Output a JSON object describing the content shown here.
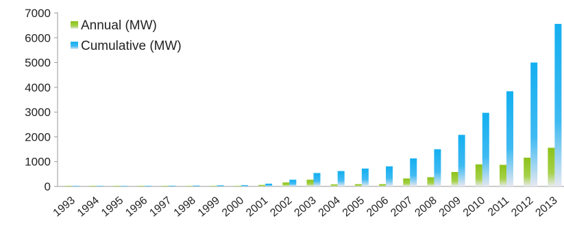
{
  "chart_data": {
    "type": "bar",
    "categories": [
      "1993",
      "1994",
      "1995",
      "1996",
      "1997",
      "1998",
      "1999",
      "2000",
      "2001",
      "2002",
      "2003",
      "2004",
      "2005",
      "2006",
      "2007",
      "2008",
      "2009",
      "2010",
      "2011",
      "2012",
      "2013"
    ],
    "series": [
      {
        "name": "Annual (MW)",
        "values": [
          5,
          5,
          5,
          10,
          5,
          10,
          10,
          10,
          60,
          160,
          270,
          80,
          90,
          90,
          320,
          370,
          580,
          890,
          870,
          1160,
          1560
        ],
        "color": "#8cc21a"
      },
      {
        "name": "Cumulative (MW)",
        "values": [
          10,
          15,
          20,
          25,
          30,
          35,
          45,
          50,
          110,
          270,
          540,
          620,
          720,
          810,
          1130,
          1500,
          2080,
          2970,
          3840,
          5000,
          6560
        ],
        "color": "#1ab0ee"
      }
    ],
    "yticks": [
      "0",
      "1000",
      "2000",
      "3000",
      "4000",
      "5000",
      "6000",
      "7000"
    ],
    "ylim": [
      0,
      7000
    ],
    "legend_position": "top-left",
    "grid": false
  }
}
